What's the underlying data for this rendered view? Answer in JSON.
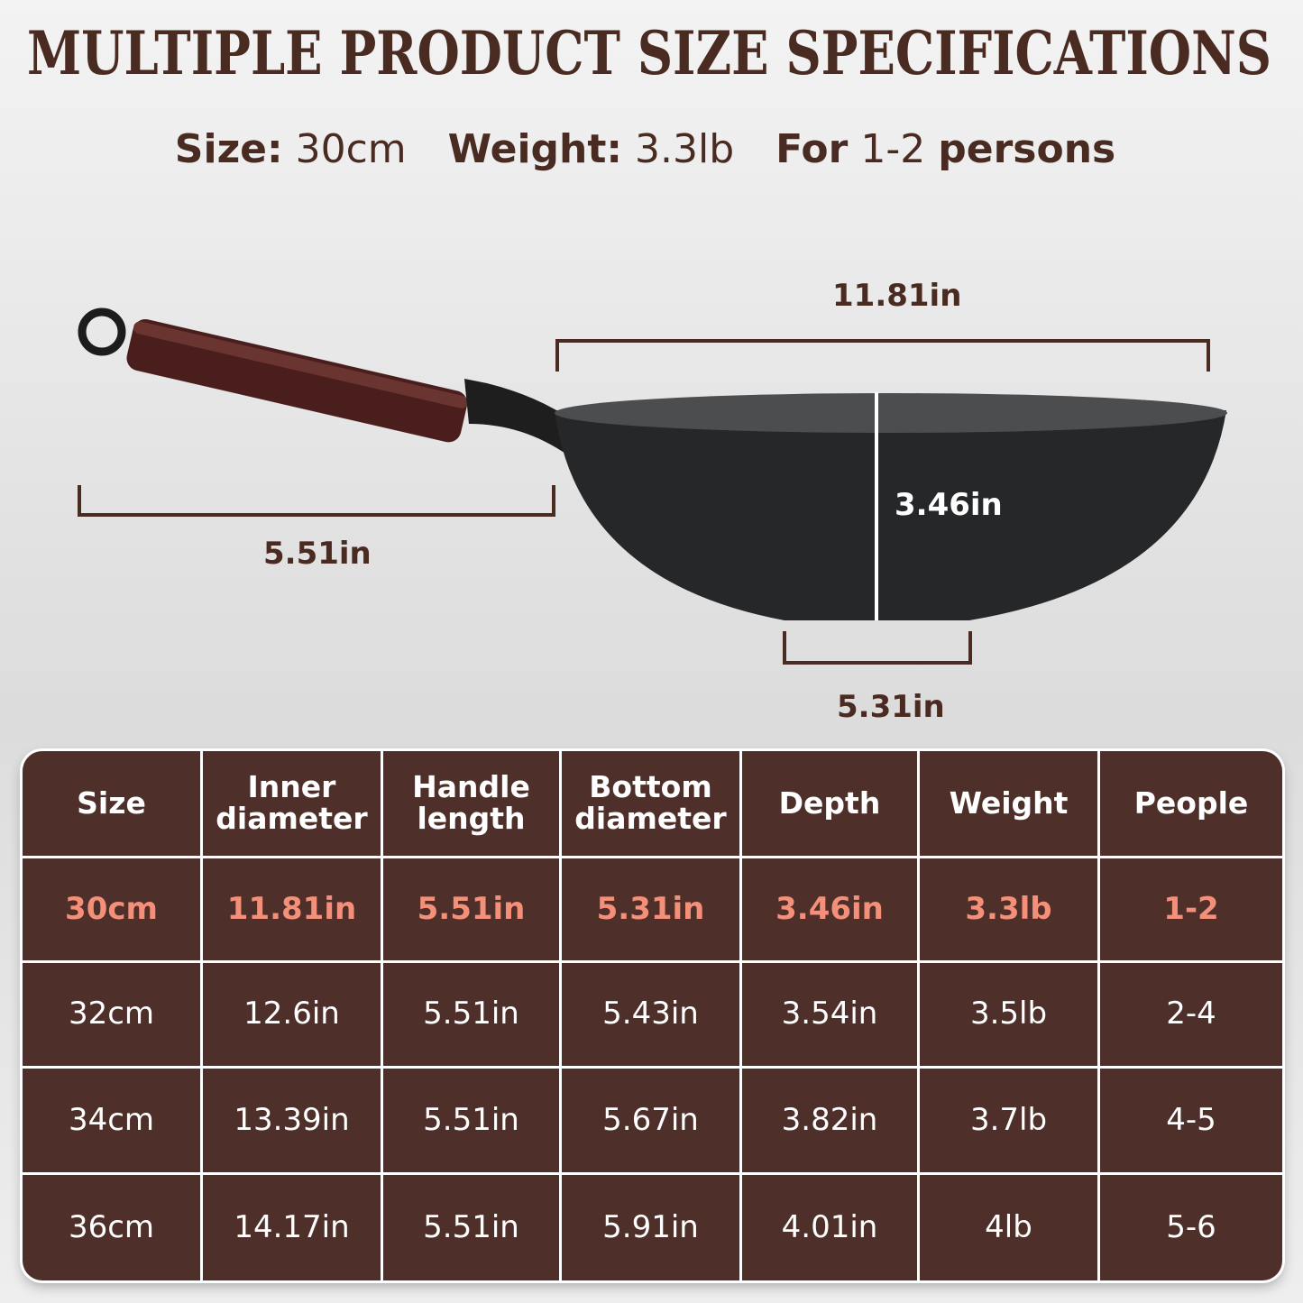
{
  "header": {
    "title": "MULTIPLE PRODUCT SIZE SPECIFICATIONS",
    "specs": [
      {
        "text": "Size:",
        "bold": true
      },
      {
        "text": "30cm",
        "bold": false
      },
      {
        "text": "Weight:",
        "bold": true
      },
      {
        "text": "3.3lb",
        "bold": false
      },
      {
        "text": "For",
        "bold": true
      },
      {
        "text": "1-2",
        "bold": false
      },
      {
        "text": "persons",
        "bold": true
      }
    ]
  },
  "dimensions": {
    "inner_diameter": "11.81in",
    "handle_length": "5.51in",
    "depth": "3.46in",
    "bottom_diameter": "5.31in"
  },
  "table": {
    "columns": [
      "Size",
      "Inner diameter",
      "Handle length",
      "Bottom diameter",
      "Depth",
      "Weight",
      "People"
    ],
    "rows": [
      [
        "30cm",
        "11.81in",
        "5.51in",
        "5.31in",
        "3.46in",
        "3.3lb",
        "1-2"
      ],
      [
        "32cm",
        "12.6in",
        "5.51in",
        "5.43in",
        "3.54in",
        "3.5lb",
        "2-4"
      ],
      [
        "34cm",
        "13.39in",
        "5.51in",
        "5.67in",
        "3.82in",
        "3.7lb",
        "4-5"
      ],
      [
        "36cm",
        "14.17in",
        "5.51in",
        "5.91in",
        "4.01in",
        "4lb",
        "5-6"
      ]
    ]
  }
}
